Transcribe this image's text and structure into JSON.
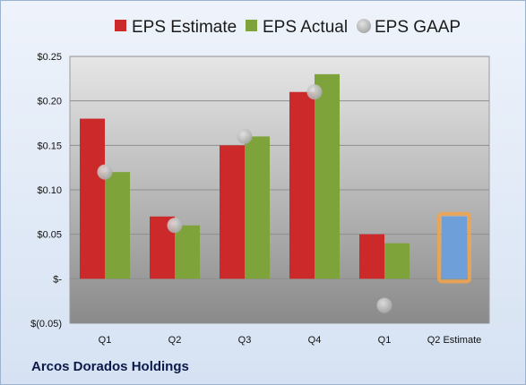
{
  "company": "Arcos Dorados Holdings",
  "colors": {
    "estimate": "#cc2a2a",
    "actual": "#7ea33a",
    "gaap": "#b9b9b9",
    "future_estimate": "#6f9fd8",
    "future_glow": "#f3a54a"
  },
  "chart_data": {
    "type": "bar",
    "categories": [
      "Q1",
      "Q2",
      "Q3",
      "Q4",
      "Q1",
      "Q2 Estimate"
    ],
    "series": [
      {
        "name": "EPS Estimate",
        "values": [
          0.18,
          0.07,
          0.15,
          0.21,
          0.05,
          null
        ]
      },
      {
        "name": "EPS Actual",
        "values": [
          0.12,
          0.06,
          0.16,
          0.23,
          0.04,
          0.07
        ]
      },
      {
        "name": "EPS GAAP",
        "values": [
          0.12,
          0.06,
          0.16,
          0.21,
          -0.03,
          null
        ]
      }
    ],
    "ylim": [
      -0.05,
      0.25
    ],
    "yticks": [
      {
        "value": 0.25,
        "label": "$0.25"
      },
      {
        "value": 0.2,
        "label": "$0.20"
      },
      {
        "value": 0.15,
        "label": "$0.15"
      },
      {
        "value": 0.1,
        "label": "$0.10"
      },
      {
        "value": 0.05,
        "label": "$0.05"
      },
      {
        "value": 0.0,
        "label": "$-"
      },
      {
        "value": -0.05,
        "label": "$(0.05)"
      }
    ],
    "legend_position": "top",
    "grid": true
  }
}
